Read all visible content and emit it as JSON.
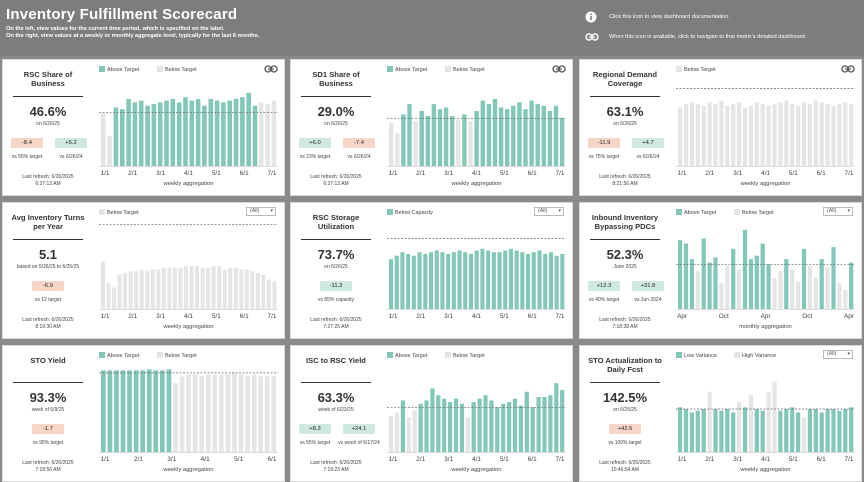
{
  "header": {
    "title": "Inventory Fulfillment Scorecard",
    "subtitle_1": "On the left, view values for the current time period, which is specified on the label.",
    "subtitle_2": "On the right, view values at a weekly or monthly aggregate level, typically for the last 6 months.",
    "help_info": "Click this icon to view dashboard documentation.",
    "help_link": "When this icon is available, click to navigate to that metric's detailed dashboard."
  },
  "colors": {
    "teal": "#82c7b8",
    "gray": "#e5e5e5",
    "neg": "#f7d6c8",
    "pos": "#cfe9e2"
  },
  "panels": [
    {
      "name": "RSC Share of Business",
      "value": "46.6%",
      "date": "on 6/26/25",
      "badges": [
        {
          "text": "-8.4",
          "type": "neg"
        },
        {
          "text": "+5.2",
          "type": "pos"
        }
      ],
      "cmps": [
        "vs 55% target",
        "vs 6/26/24"
      ],
      "refresh_1": "Last refresh: 6/26/2025",
      "refresh_2": "6:37:13 AM",
      "legend": [
        "Above Target",
        "Below Target"
      ],
      "dropdown": "",
      "link": true,
      "xlabel": "weekly aggregation",
      "xticks": [
        "1/1",
        "2/1",
        "3/1",
        "4/1",
        "5/1",
        "6/1",
        "7/1"
      ]
    },
    {
      "name": "SD1 Share of Business",
      "value": "29.0%",
      "date": "on 6/26/25",
      "badges": [
        {
          "text": "+6.0",
          "type": "pos"
        },
        {
          "text": "-7.4",
          "type": "neg"
        }
      ],
      "cmps": [
        "vs 23% target",
        "vs 6/26/24"
      ],
      "refresh_1": "Last refresh: 6/26/2025",
      "refresh_2": "6:37:13 AM",
      "legend": [
        "Above Target",
        "Below Target"
      ],
      "dropdown": "",
      "link": true,
      "xlabel": "weekly aggregation",
      "xticks": [
        "1/1",
        "2/1",
        "3/1",
        "4/1",
        "5/1",
        "6/1",
        "7/1"
      ]
    },
    {
      "name": "Regional Demand Coverage",
      "value": "63.1%",
      "date": "on 6/26/25",
      "badges": [
        {
          "text": "-11.9",
          "type": "neg"
        },
        {
          "text": "+4.7",
          "type": "pos"
        }
      ],
      "cmps": [
        "vs 75% target",
        "vs 6/26/24"
      ],
      "refresh_1": "Last refresh: 6/26/2025",
      "refresh_2": "8:21:56 AM",
      "legend": [
        "Below Target"
      ],
      "dropdown": "",
      "link": true,
      "xlabel": "weekly aggregation",
      "xticks": [
        "1/1",
        "2/1",
        "3/1",
        "4/1",
        "5/1",
        "6/1",
        "7/1"
      ]
    },
    {
      "name": "Avg Inventory Turns per Year",
      "value": "5.1",
      "date": "based on 5/26/25 to 6/25/25",
      "badges": [
        {
          "text": "-6.9",
          "type": "neg"
        }
      ],
      "cmps": [
        "vs 12 target"
      ],
      "refresh_1": "Last refresh: 6/26/2025",
      "refresh_2": "8:19:30 AM",
      "legend": [
        "Below Target"
      ],
      "dropdown": "(All)",
      "link": false,
      "xlabel": "weekly aggregation",
      "xticks": [
        "1/1",
        "2/1",
        "3/1",
        "4/1",
        "5/1",
        "6/1",
        "7/1"
      ]
    },
    {
      "name": "RSC Storage Utilization",
      "value": "73.7%",
      "date": "on 6/26/25",
      "badges": [
        {
          "text": "-11.3",
          "type": "pos"
        }
      ],
      "cmps": [
        "vs 85% capacity"
      ],
      "refresh_1": "Last refresh: 6/26/2025",
      "refresh_2": "7:27:25 AM",
      "legend": [
        "Below Capacity"
      ],
      "dropdown": "(All)",
      "link": false,
      "xlabel": "",
      "xticks": [
        "1/1",
        "2/1",
        "3/1",
        "4/1",
        "5/1",
        "6/1",
        "7/1"
      ]
    },
    {
      "name": "Inbound Inventory Bypassing PDCs",
      "value": "52.3%",
      "date": "June 2025",
      "badges": [
        {
          "text": "+12.3",
          "type": "pos"
        },
        {
          "text": "+31.8",
          "type": "pos"
        }
      ],
      "cmps": [
        "vs 40% target",
        "vs Jun 2024"
      ],
      "refresh_1": "Last refresh: 6/26/2025",
      "refresh_2": "7:18:38 AM",
      "legend": [
        "Above Target",
        "Below Target"
      ],
      "dropdown": "(All)",
      "link": false,
      "xlabel": "monthly aggregation",
      "xticks": [
        "Apr",
        "Oct",
        "Apr",
        "Oct",
        "Apr"
      ]
    },
    {
      "name": "STO Yield",
      "value": "93.3%",
      "date": "week of 6/9/25",
      "badges": [
        {
          "text": "-1.7",
          "type": "neg"
        }
      ],
      "cmps": [
        "vs 95% target"
      ],
      "refresh_1": "Last refresh: 6/26/2025",
      "refresh_2": "7:18:56 AM",
      "legend": [
        "Above Target",
        "Below Target"
      ],
      "dropdown": "",
      "link": false,
      "xlabel": "weekly aggregation",
      "xticks": [
        "1/1",
        "2/1",
        "3/1",
        "4/1",
        "5/1",
        "6/1"
      ]
    },
    {
      "name": "ISC to RSC Yield",
      "value": "63.3%",
      "date": "week of 6/23/25",
      "badges": [
        {
          "text": "+8.3",
          "type": "pos"
        },
        {
          "text": "+24.1",
          "type": "pos"
        }
      ],
      "cmps": [
        "vs 55% target",
        "vs week of 6/17/24"
      ],
      "refresh_1": "Last refresh: 6/26/2025",
      "refresh_2": "7:19:23 AM",
      "legend": [
        "Above Target",
        "Below Target"
      ],
      "dropdown": "",
      "link": false,
      "xlabel": "weekly aggregation",
      "xticks": [
        "1/1",
        "2/1",
        "3/1",
        "4/1",
        "5/1",
        "6/1",
        "7/1"
      ]
    },
    {
      "name": "STO Actualization to Daily Fcst",
      "value": "142.5%",
      "date": "on 6/25/25",
      "badges": [
        {
          "text": "+42.5",
          "type": "neg"
        }
      ],
      "cmps": [
        "vs 100% target"
      ],
      "refresh_1": "Last refresh: 6/26/2025",
      "refresh_2": "10:46:54 AM",
      "legend": [
        "Low Variance",
        "High Variance"
      ],
      "dropdown": "(All)",
      "link": false,
      "xlabel": "weekly aggregation",
      "xticks": [
        "1/1",
        "2/1",
        "3/1",
        "4/1",
        "5/1",
        "6/1",
        "7/1"
      ]
    }
  ],
  "chart_data": [
    {
      "type": "bar",
      "target": 0.62,
      "values": [
        0.62,
        0.35,
        0.68,
        0.66,
        0.78,
        0.74,
        0.76,
        0.7,
        0.72,
        0.74,
        0.76,
        0.78,
        0.74,
        0.8,
        0.76,
        0.78,
        0.7,
        0.78,
        0.76,
        0.74,
        0.76,
        0.78,
        0.8,
        0.85,
        0.7,
        0.74,
        0.72,
        0.76
      ],
      "flags": [
        0,
        0,
        1,
        1,
        1,
        1,
        1,
        1,
        1,
        1,
        1,
        1,
        1,
        1,
        1,
        1,
        1,
        1,
        1,
        1,
        1,
        1,
        1,
        1,
        1,
        0,
        0,
        0
      ]
    },
    {
      "type": "bar",
      "target": 0.55,
      "values": [
        0.5,
        0.38,
        0.6,
        0.72,
        0.52,
        0.64,
        0.58,
        0.72,
        0.66,
        0.68,
        0.58,
        0.54,
        0.6,
        0.52,
        0.64,
        0.76,
        0.72,
        0.78,
        0.68,
        0.66,
        0.7,
        0.74,
        0.66,
        0.76,
        0.72,
        0.7,
        0.64,
        0.7,
        0.56
      ],
      "flags": [
        0,
        0,
        1,
        1,
        0,
        1,
        1,
        1,
        1,
        1,
        1,
        0,
        1,
        0,
        1,
        1,
        1,
        1,
        1,
        1,
        1,
        1,
        1,
        1,
        1,
        1,
        1,
        1,
        1
      ]
    },
    {
      "type": "bar",
      "target": 0.9,
      "values": [
        0.68,
        0.72,
        0.74,
        0.72,
        0.7,
        0.74,
        0.72,
        0.76,
        0.7,
        0.72,
        0.74,
        0.68,
        0.7,
        0.74,
        0.72,
        0.7,
        0.72,
        0.74,
        0.76,
        0.72,
        0.7,
        0.74,
        0.72,
        0.76,
        0.74,
        0.72,
        0.7,
        0.72,
        0.74,
        0.72
      ],
      "flags": [
        0,
        0,
        0,
        0,
        0,
        0,
        0,
        0,
        0,
        0,
        0,
        0,
        0,
        0,
        0,
        0,
        0,
        0,
        0,
        0,
        0,
        0,
        0,
        0,
        0,
        0,
        0,
        0,
        0,
        0
      ]
    },
    {
      "type": "bar",
      "target": 0.98,
      "values": [
        0.55,
        0.3,
        0.25,
        0.4,
        0.42,
        0.44,
        0.44,
        0.46,
        0.44,
        0.46,
        0.46,
        0.48,
        0.48,
        0.48,
        0.48,
        0.5,
        0.5,
        0.5,
        0.48,
        0.48,
        0.5,
        0.5,
        0.46,
        0.48,
        0.48,
        0.46,
        0.46,
        0.44,
        0.42,
        0.4,
        0.34,
        0.32
      ],
      "flags": [
        0,
        0,
        0,
        0,
        0,
        0,
        0,
        0,
        0,
        0,
        0,
        0,
        0,
        0,
        0,
        0,
        0,
        0,
        0,
        0,
        0,
        0,
        0,
        0,
        0,
        0,
        0,
        0,
        0,
        0,
        0,
        0
      ]
    },
    {
      "type": "bar",
      "target": 0.82,
      "values": [
        0.58,
        0.62,
        0.66,
        0.64,
        0.62,
        0.66,
        0.64,
        0.66,
        0.68,
        0.66,
        0.64,
        0.66,
        0.68,
        0.66,
        0.64,
        0.68,
        0.7,
        0.68,
        0.66,
        0.66,
        0.68,
        0.7,
        0.68,
        0.66,
        0.64,
        0.66,
        0.68,
        0.64,
        0.66,
        0.62,
        0.64
      ],
      "flags": [
        1,
        1,
        1,
        1,
        1,
        1,
        1,
        1,
        1,
        1,
        1,
        1,
        1,
        1,
        1,
        1,
        1,
        1,
        1,
        1,
        1,
        1,
        1,
        1,
        1,
        1,
        1,
        1,
        1,
        1,
        1
      ]
    },
    {
      "type": "bar",
      "target": 0.52,
      "values": [
        0.8,
        0.76,
        0.58,
        0.44,
        0.82,
        0.54,
        0.6,
        0.3,
        0.5,
        0.7,
        0.46,
        0.92,
        0.58,
        0.62,
        0.76,
        0.52,
        0.36,
        0.44,
        0.58,
        0.46,
        0.32,
        0.7,
        0.5,
        0.36,
        0.58,
        0.48,
        0.72,
        0.3,
        0.22,
        0.54
      ],
      "flags": [
        1,
        1,
        1,
        0,
        1,
        1,
        1,
        0,
        0,
        1,
        0,
        1,
        1,
        1,
        1,
        1,
        0,
        0,
        1,
        0,
        0,
        1,
        0,
        0,
        1,
        0,
        1,
        0,
        0,
        1
      ]
    },
    {
      "type": "bar",
      "target": 0.92,
      "values": [
        0.95,
        0.95,
        0.95,
        0.95,
        0.95,
        0.95,
        0.95,
        0.96,
        0.95,
        0.95,
        0.96,
        0.8,
        0.88,
        0.9,
        0.9,
        0.88,
        0.9,
        0.9,
        0.9,
        0.9,
        0.92,
        0.9,
        0.88,
        0.9,
        0.88,
        0.88,
        0.88
      ],
      "flags": [
        1,
        1,
        1,
        1,
        1,
        1,
        1,
        1,
        1,
        1,
        1,
        0,
        0,
        0,
        0,
        0,
        0,
        0,
        0,
        0,
        0,
        0,
        0,
        0,
        0,
        0,
        0
      ]
    },
    {
      "type": "bar",
      "target": 0.52,
      "values": [
        0.42,
        0.46,
        0.6,
        0.4,
        0.48,
        0.56,
        0.6,
        0.74,
        0.66,
        0.62,
        0.58,
        0.62,
        0.56,
        0.4,
        0.58,
        0.62,
        0.66,
        0.6,
        0.52,
        0.56,
        0.58,
        0.62,
        0.54,
        0.7,
        0.52,
        0.64,
        0.64,
        0.66,
        0.8,
        0.72
      ],
      "flags": [
        0,
        0,
        1,
        0,
        0,
        1,
        1,
        1,
        1,
        1,
        1,
        1,
        1,
        0,
        1,
        1,
        1,
        1,
        1,
        1,
        1,
        1,
        1,
        1,
        1,
        1,
        1,
        1,
        1,
        1
      ]
    },
    {
      "type": "bar",
      "target": 0.5,
      "values": [
        0.52,
        0.5,
        0.46,
        0.48,
        0.5,
        0.7,
        0.5,
        0.48,
        0.5,
        0.46,
        0.58,
        0.52,
        0.66,
        0.5,
        0.48,
        0.7,
        0.82,
        0.48,
        0.5,
        0.52,
        0.46,
        0.4,
        0.5,
        0.5,
        0.46,
        0.5,
        0.5,
        0.48,
        0.5,
        0.52
      ],
      "flags": [
        1,
        1,
        1,
        1,
        1,
        0,
        1,
        1,
        1,
        1,
        0,
        1,
        0,
        1,
        1,
        0,
        0,
        1,
        1,
        1,
        1,
        0,
        1,
        1,
        1,
        1,
        1,
        1,
        1,
        1
      ]
    }
  ]
}
